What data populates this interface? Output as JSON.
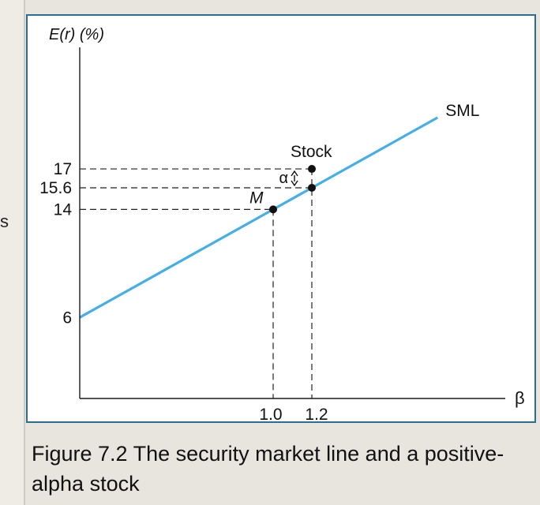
{
  "side_text": "s",
  "caption": "Figure 7.2 The security market line and a positive-alpha stock",
  "colors": {
    "sml_line": "#45aee6",
    "axis": "#1a1a1a",
    "frame_border": "#2a6e96",
    "background": "#efece6"
  },
  "chart_data": {
    "type": "line",
    "title": "",
    "ylabel": "E(r) (%)",
    "xlabel": "β",
    "xlim": [
      0,
      2.2
    ],
    "ylim": [
      0,
      26
    ],
    "grid": false,
    "y_ticks": [
      {
        "value": 6,
        "label": "6"
      },
      {
        "value": 14,
        "label": "14"
      },
      {
        "value": 15.6,
        "label": "15.6"
      },
      {
        "value": 17,
        "label": "17"
      }
    ],
    "x_ticks": [
      {
        "value": 1.0,
        "label": "1.0"
      },
      {
        "value": 1.2,
        "label": "1.2"
      }
    ],
    "series": [
      {
        "name": "SML",
        "type": "line",
        "x": [
          0,
          1.85
        ],
        "y": [
          6,
          20.8
        ]
      }
    ],
    "points": [
      {
        "name": "M",
        "x": 1.0,
        "y": 14
      },
      {
        "name": "",
        "x": 1.2,
        "y": 15.6
      },
      {
        "name": "Stock",
        "x": 1.2,
        "y": 17
      }
    ],
    "annotations": [
      {
        "text": "α",
        "x": 1.2,
        "y_from": 15.6,
        "y_to": 17
      }
    ]
  }
}
